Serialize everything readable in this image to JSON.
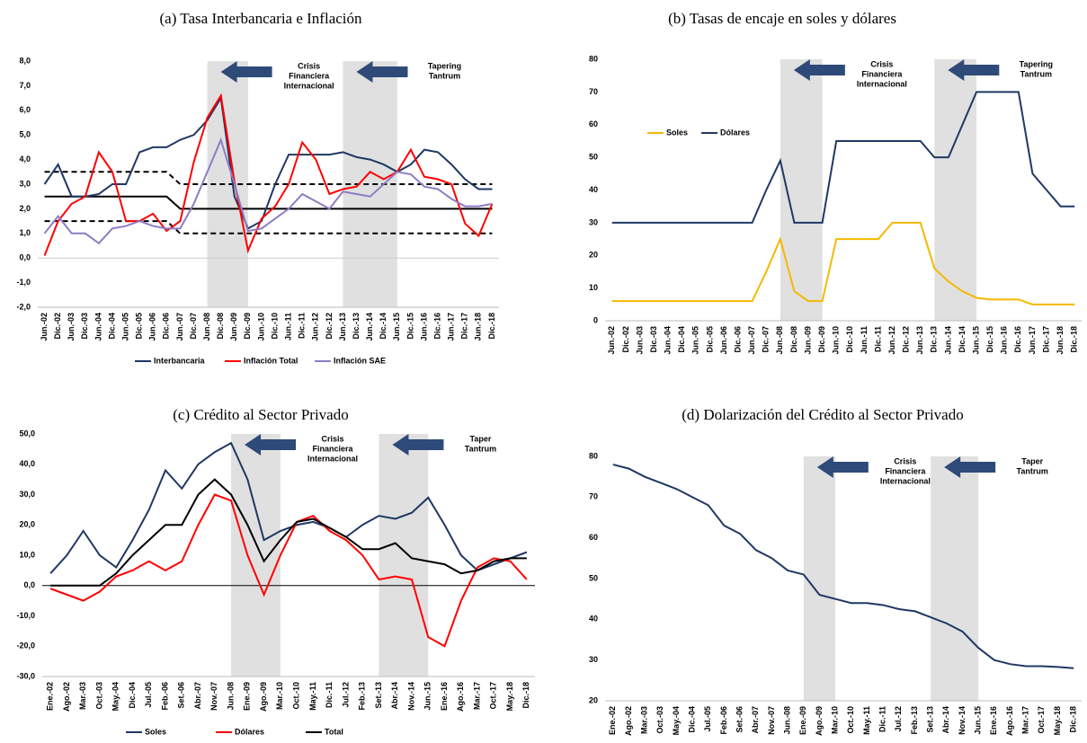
{
  "chart_data": [
    {
      "type": "line",
      "title": "(a) Tasa Interbancaria e Inflación",
      "categories": [
        "Jun.-02",
        "Dic.-02",
        "Jun.-03",
        "Dic.-03",
        "Jun.-04",
        "Dic.-04",
        "Jun.-05",
        "Dic.-05",
        "Jun.-06",
        "Dic.-06",
        "Jun.-07",
        "Dic.-07",
        "Jun.-08",
        "Dic.-08",
        "Jun.-09",
        "Dic.-09",
        "Jun.-10",
        "Dic.-10",
        "Jun.-11",
        "Dic.-11",
        "Jun.-12",
        "Dic.-12",
        "Jun.-13",
        "Dic.-13",
        "Jun.-14",
        "Dic.-14",
        "Jun.-15",
        "Dic.-15",
        "Jun.-16",
        "Dic.-16",
        "Jun.-17",
        "Dic.-17",
        "Jun.-18",
        "Dic.-18"
      ],
      "series": [
        {
          "name": "Interbancaria",
          "color": "#1f3864",
          "values": [
            3.0,
            3.8,
            2.5,
            2.5,
            2.6,
            3.0,
            3.0,
            4.3,
            4.5,
            4.5,
            4.8,
            5.0,
            5.6,
            6.5,
            2.5,
            1.2,
            1.5,
            3.0,
            4.2,
            4.2,
            4.2,
            4.2,
            4.3,
            4.1,
            4.0,
            3.8,
            3.5,
            3.8,
            4.4,
            4.3,
            3.8,
            3.2,
            2.8,
            2.8
          ]
        },
        {
          "name": "Inflación Total",
          "color": "#ff0000",
          "values": [
            0.1,
            1.5,
            2.2,
            2.5,
            4.3,
            3.5,
            1.5,
            1.5,
            1.8,
            1.1,
            1.5,
            3.9,
            5.7,
            6.6,
            3.1,
            0.3,
            1.6,
            2.1,
            3.0,
            4.7,
            4.0,
            2.6,
            2.8,
            2.9,
            3.5,
            3.2,
            3.5,
            4.4,
            3.3,
            3.2,
            3.0,
            1.4,
            0.9,
            2.2
          ]
        },
        {
          "name": "Inflación SAE",
          "color": "#8e7cc3",
          "values": [
            1.0,
            1.7,
            1.0,
            1.0,
            0.6,
            1.2,
            1.3,
            1.5,
            1.3,
            1.2,
            1.2,
            2.2,
            3.5,
            4.8,
            3.0,
            1.1,
            1.2,
            1.6,
            2.0,
            2.6,
            2.3,
            2.0,
            2.7,
            2.6,
            2.5,
            3.0,
            3.5,
            3.4,
            2.9,
            2.8,
            2.4,
            2.1,
            2.1,
            2.2
          ]
        }
      ],
      "reference_lines": [
        {
          "dashed": false,
          "values": [
            2.5,
            2.5,
            2.5,
            2.5,
            2.5,
            2.5,
            2.5,
            2.5,
            2.5,
            2.5,
            2.0,
            2.0,
            2.0,
            2.0,
            2.0,
            2.0,
            2.0,
            2.0,
            2.0,
            2.0,
            2.0,
            2.0,
            2.0,
            2.0,
            2.0,
            2.0,
            2.0,
            2.0,
            2.0,
            2.0,
            2.0,
            2.0,
            2.0,
            2.0
          ]
        },
        {
          "dashed": true,
          "values": [
            3.5,
            3.5,
            3.5,
            3.5,
            3.5,
            3.5,
            3.5,
            3.5,
            3.5,
            3.5,
            3.0,
            3.0,
            3.0,
            3.0,
            3.0,
            3.0,
            3.0,
            3.0,
            3.0,
            3.0,
            3.0,
            3.0,
            3.0,
            3.0,
            3.0,
            3.0,
            3.0,
            3.0,
            3.0,
            3.0,
            3.0,
            3.0,
            3.0,
            3.0
          ]
        },
        {
          "dashed": true,
          "values": [
            1.5,
            1.5,
            1.5,
            1.5,
            1.5,
            1.5,
            1.5,
            1.5,
            1.5,
            1.5,
            1.0,
            1.0,
            1.0,
            1.0,
            1.0,
            1.0,
            1.0,
            1.0,
            1.0,
            1.0,
            1.0,
            1.0,
            1.0,
            1.0,
            1.0,
            1.0,
            1.0,
            1.0,
            1.0,
            1.0,
            1.0,
            1.0,
            1.0,
            1.0
          ]
        }
      ],
      "shaded": [
        {
          "from": "Jun.-08",
          "to": "Dic.-09",
          "label": [
            "Crisis",
            "Financiera",
            "Internacional"
          ]
        },
        {
          "from": "Jun.-13",
          "to": "Jun.-15",
          "label": [
            "Tapering",
            "Tantrum"
          ]
        }
      ],
      "ylim": [
        -2,
        8
      ],
      "yticks": [
        {
          "value": 8,
          "label": "8,0"
        },
        {
          "value": 7,
          "label": "7,0"
        },
        {
          "value": 6,
          "label": "6,0"
        },
        {
          "value": 5,
          "label": "5,0"
        },
        {
          "value": 4,
          "label": "4,0"
        },
        {
          "value": 3,
          "label": "3,0"
        },
        {
          "value": 2,
          "label": "2,0"
        },
        {
          "value": 1,
          "label": "1,0"
        },
        {
          "value": 0,
          "label": "0,0"
        },
        {
          "value": -1,
          "label": "-1,0"
        },
        {
          "value": -2,
          "label": "-2,0"
        }
      ],
      "legend": "bottom"
    },
    {
      "type": "line",
      "title": "(b) Tasas de encaje en soles y dólares",
      "categories": [
        "Jun.-02",
        "Dic.-02",
        "Jun.-03",
        "Dic.-03",
        "Jun.-04",
        "Dic.-04",
        "Jun.-05",
        "Dic.-05",
        "Jun.-06",
        "Dic.-06",
        "Jun.-07",
        "Dic.-07",
        "Jun.-08",
        "Dic.-08",
        "Jun.-09",
        "Dic.-09",
        "Jun.-10",
        "Dic.-10",
        "Jun.-11",
        "Dic.-11",
        "Jun.-12",
        "Dic.-12",
        "Jun.-13",
        "Dic.-13",
        "Jun.-14",
        "Dic.-14",
        "Jun.-15",
        "Dic.-15",
        "Jun.-16",
        "Dic.-16",
        "Jun.-17",
        "Dic.-17",
        "Jun.-18",
        "Dic.-18"
      ],
      "series": [
        {
          "name": "Soles",
          "color": "#f5b800",
          "values": [
            6,
            6,
            6,
            6,
            6,
            6,
            6,
            6,
            6,
            6,
            6,
            15,
            25,
            9,
            6,
            6,
            25,
            25,
            25,
            25,
            30,
            30,
            30,
            16,
            12,
            9,
            7,
            6.5,
            6.5,
            6.5,
            5,
            5,
            5,
            5
          ]
        },
        {
          "name": "Dólares",
          "color": "#1f3864",
          "values": [
            30,
            30,
            30,
            30,
            30,
            30,
            30,
            30,
            30,
            30,
            30,
            40,
            49,
            30,
            30,
            30,
            55,
            55,
            55,
            55,
            55,
            55,
            55,
            50,
            50,
            60,
            70,
            70,
            70,
            70,
            45,
            40,
            35,
            35
          ]
        }
      ],
      "shaded": [
        {
          "from": "Jun.-08",
          "to": "Dic.-09",
          "label": [
            "Crisis",
            "Financiera",
            "Internacional"
          ]
        },
        {
          "from": "Dic.-13",
          "to": "Jun.-15",
          "label": [
            "Tapering",
            "Tantrum"
          ]
        }
      ],
      "ylim": [
        0,
        80
      ],
      "yticks": [
        0,
        10,
        20,
        30,
        40,
        50,
        60,
        70,
        80
      ],
      "legend": "upper-left"
    },
    {
      "type": "line",
      "title": "(c) Crédito al Sector Privado",
      "categories": [
        "Ene.-02",
        "Ago.-02",
        "Mar.-03",
        "Oct.-03",
        "May.-04",
        "Dic.-04",
        "Jul.-05",
        "Feb.-06",
        "Set.-06",
        "Abr.-07",
        "Nov.-07",
        "Jun.-08",
        "Ene.-09",
        "Ago.-09",
        "Mar.-10",
        "Oct.-10",
        "May.-11",
        "Dic.-11",
        "Jul.-12",
        "Feb.-13",
        "Set.-13",
        "Abr.-14",
        "Nov.-14",
        "Jun.-15",
        "Ene.-16",
        "Ago.-16",
        "Mar.-17",
        "Oct.-17",
        "May.-18",
        "Dic.-18"
      ],
      "series": [
        {
          "name": "Soles",
          "color": "#1f3864",
          "values": [
            4,
            10,
            18,
            10,
            6,
            15,
            25,
            38,
            32,
            40,
            44,
            47,
            35,
            15,
            18,
            20,
            21,
            19,
            16,
            20,
            23,
            22,
            24,
            29,
            20,
            10,
            5,
            7,
            9,
            11
          ]
        },
        {
          "name": "Dólares",
          "color": "#ff0000",
          "values": [
            -1,
            -3,
            -5,
            -2,
            3,
            5,
            8,
            5,
            8,
            20,
            30,
            28,
            10,
            -3,
            10,
            21,
            23,
            18,
            15,
            10,
            2,
            3,
            2,
            -17,
            -20,
            -5,
            6,
            9,
            8,
            2
          ]
        },
        {
          "name": "Total",
          "color": "#000000",
          "values": [
            0,
            0,
            0,
            0,
            4,
            10,
            15,
            20,
            20,
            30,
            35,
            30,
            20,
            8,
            15,
            21,
            22,
            19,
            16,
            12,
            12,
            14,
            9,
            8,
            7,
            4,
            5,
            8,
            9,
            9
          ]
        }
      ],
      "shaded": [
        {
          "from": "Jun.-08",
          "to": "Mar.-10",
          "label": [
            "Crisis",
            "Financiera",
            "Internacional"
          ]
        },
        {
          "from": "Set.-13",
          "to": "Jun.-15",
          "label": [
            "Taper",
            "Tantrum"
          ]
        }
      ],
      "ylim": [
        -30,
        50
      ],
      "yticks": [
        {
          "value": 50,
          "label": "50,0"
        },
        {
          "value": 40,
          "label": "40,0"
        },
        {
          "value": 30,
          "label": "30,0"
        },
        {
          "value": 20,
          "label": "20,0"
        },
        {
          "value": 10,
          "label": "10,0"
        },
        {
          "value": 0,
          "label": "0,0"
        },
        {
          "value": -10,
          "label": "-10,0"
        },
        {
          "value": -20,
          "label": "-20,0"
        },
        {
          "value": -30,
          "label": "-30,0"
        }
      ],
      "legend": "bottom"
    },
    {
      "type": "line",
      "title": "(d) Dolarización del Crédito al Sector Privado",
      "categories": [
        "Ene.-02",
        "Ago.-02",
        "Mar.-03",
        "Oct.-03",
        "May.-04",
        "Dic.-04",
        "Jul.-05",
        "Feb.-06",
        "Set.-06",
        "Abr.-07",
        "Nov.-07",
        "Jun.-08",
        "Ene.-09",
        "Ago.-09",
        "Mar.-10",
        "Oct.-10",
        "May.-11",
        "Dic.-11",
        "Jul.-12",
        "Feb.-13",
        "Set.-13",
        "Abr.-14",
        "Nov.-14",
        "Jun.-15",
        "Ene.-16",
        "Ago.-16",
        "Mar.-17",
        "Oct.-17",
        "May.-18",
        "Dic.-18"
      ],
      "series": [
        {
          "color": "#1f3864",
          "values": [
            78,
            77,
            75,
            73.5,
            72,
            70,
            68,
            63,
            61,
            57,
            55,
            52,
            51,
            46,
            45,
            44,
            44,
            43.5,
            42.5,
            42,
            40.5,
            39,
            37,
            33,
            30,
            29,
            28.5,
            28.5,
            28.3,
            28
          ]
        }
      ],
      "shaded": [
        {
          "from": "Ene.-09",
          "to": "Mar.-10",
          "label": [
            "Crisis",
            "Financiera",
            "Internacional"
          ]
        },
        {
          "from": "Set.-13",
          "to": "Jun.-15",
          "label": [
            "Taper",
            "Tantrum"
          ]
        }
      ],
      "ylim": [
        20,
        80
      ],
      "yticks": [
        20,
        30,
        40,
        50,
        60,
        70,
        80
      ]
    }
  ]
}
